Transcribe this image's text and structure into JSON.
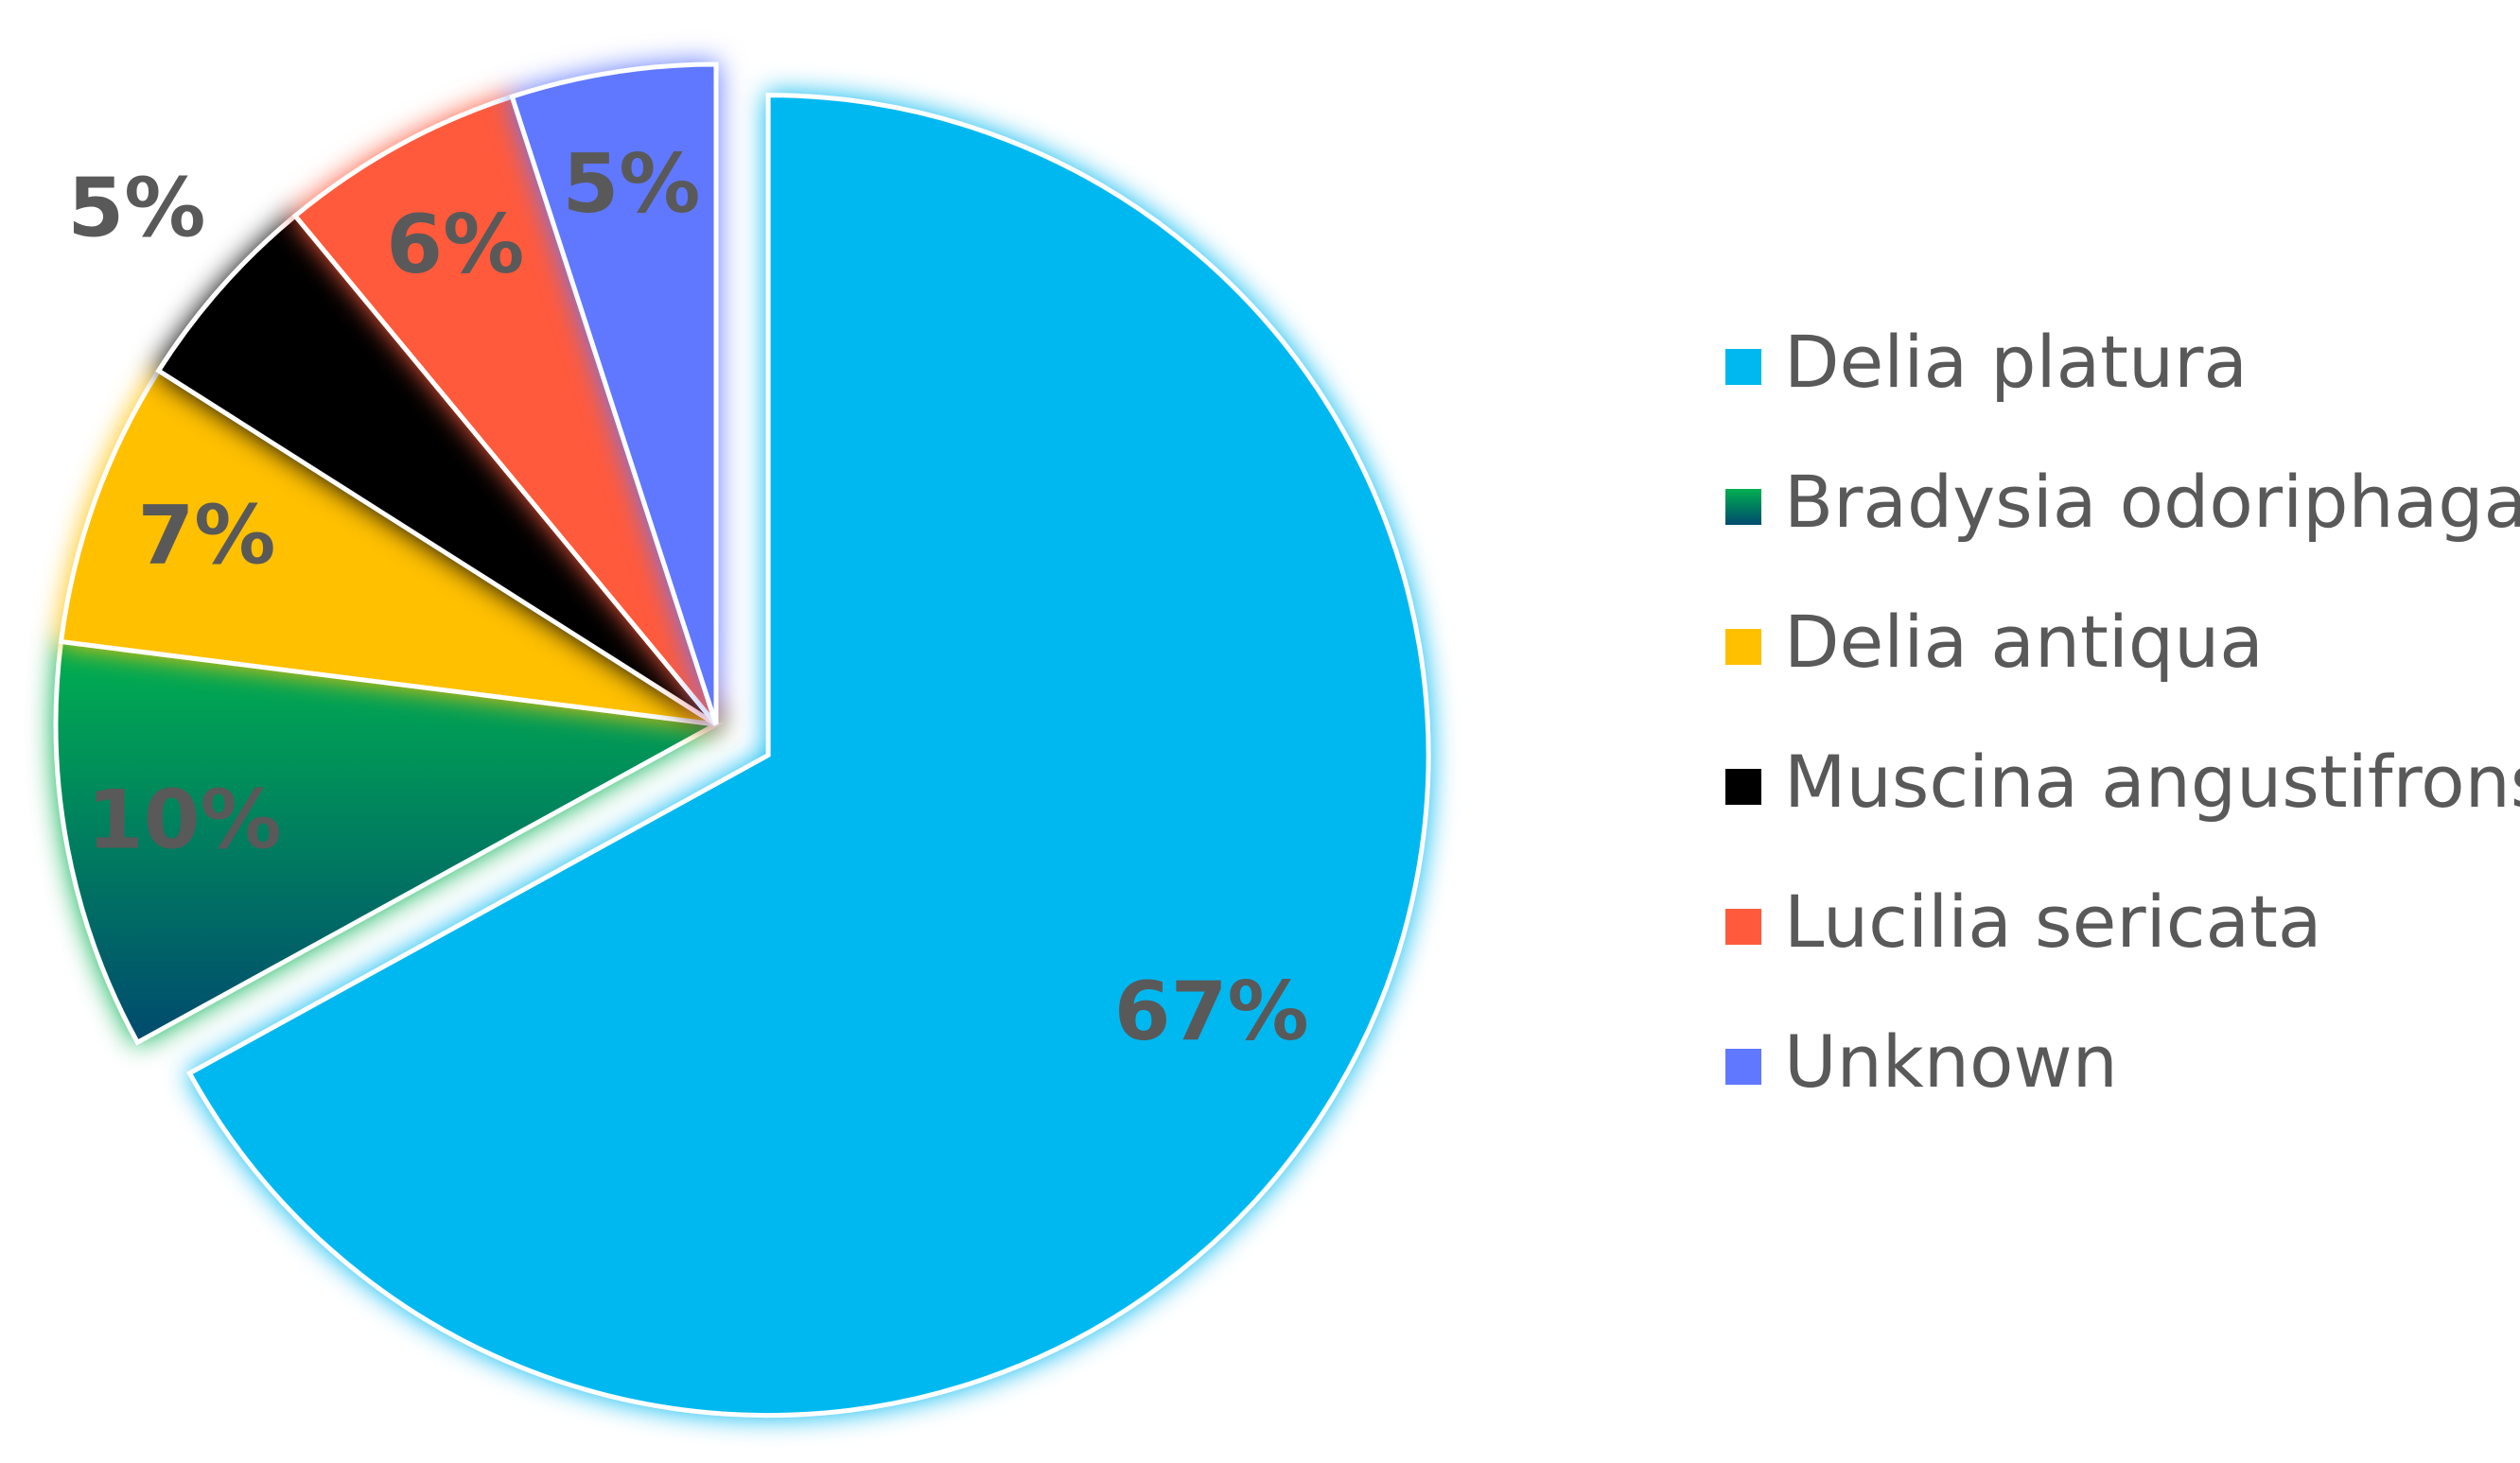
{
  "chart_data": {
    "type": "pie",
    "categories": [
      "Delia platura",
      "Bradysia odoriphaga",
      "Delia antiqua",
      "Muscina angustifrons",
      "Lucilia sericata",
      "Unknown"
    ],
    "values": [
      67,
      10,
      7,
      5,
      6,
      5
    ],
    "value_labels": [
      "67%",
      "10%",
      "7%",
      "5%",
      "6%",
      "5%"
    ],
    "colors": [
      "#00b8f0",
      "#00b050",
      "#ffc000",
      "#000000",
      "#ff5a3c",
      "#6078ff"
    ],
    "legend": "right"
  }
}
